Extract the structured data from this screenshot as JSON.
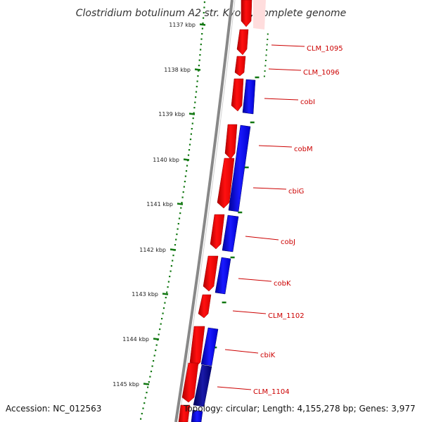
{
  "title": "Clostridium botulinum A2 str. Kyoto, complete genome",
  "accession": "Accession: NC_012563",
  "summary": "Topology: circular; Length: 4,155,278 bp; Genes: 3,977",
  "colors": {
    "forward": "#ee0000",
    "reverse": "#0000ee",
    "reverse_dark": "#000088",
    "backbone": "#888888",
    "gc_dots": "#117711",
    "label": "#cc0000"
  },
  "scale_labels": [
    "1137 kbp",
    "1138 kbp",
    "1139 kbp",
    "1140 kbp",
    "1141 kbp",
    "1142 kbp",
    "1143 kbp",
    "1144 kbp",
    "1145 kbp"
  ],
  "gene_labels": [
    "CLM_1095",
    "CLM_1096",
    "cobI",
    "cobM",
    "cbiG",
    "cobJ",
    "cobK",
    "CLM_1102",
    "cbiK",
    "CLM_1104"
  ]
}
